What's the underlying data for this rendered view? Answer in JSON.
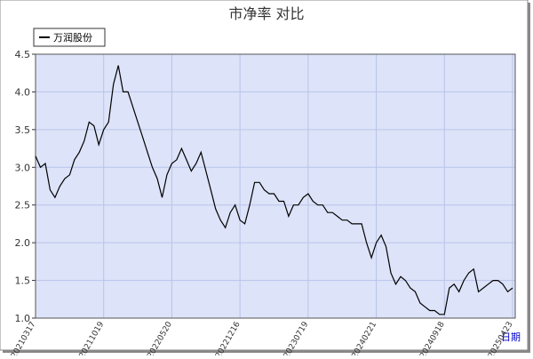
{
  "chart_data": {
    "type": "line",
    "title": "市净率 对比",
    "x_label": "日期",
    "categories": [
      "20210317",
      null,
      null,
      null,
      null,
      null,
      null,
      null,
      null,
      null,
      null,
      null,
      null,
      null,
      "20211019",
      null,
      null,
      null,
      null,
      null,
      null,
      null,
      null,
      null,
      null,
      null,
      null,
      null,
      "20220520",
      null,
      null,
      null,
      null,
      null,
      null,
      null,
      null,
      null,
      null,
      null,
      null,
      null,
      "20221216",
      null,
      null,
      null,
      null,
      null,
      null,
      null,
      null,
      null,
      null,
      null,
      null,
      null,
      "20230719",
      null,
      null,
      null,
      null,
      null,
      null,
      null,
      null,
      null,
      null,
      null,
      null,
      null,
      "20240221",
      null,
      null,
      null,
      null,
      null,
      null,
      null,
      null,
      null,
      null,
      null,
      null,
      null,
      "20240918",
      null,
      null,
      null,
      null,
      null,
      null,
      null,
      null,
      null,
      null,
      null,
      null,
      null,
      "20250423"
    ],
    "series": [
      {
        "name": "万润股份",
        "color": "#000000",
        "values": [
          3.15,
          3.0,
          3.05,
          2.7,
          2.6,
          2.75,
          2.85,
          2.9,
          3.1,
          3.2,
          3.35,
          3.6,
          3.55,
          3.3,
          3.5,
          3.6,
          4.1,
          4.35,
          4.0,
          4.0,
          3.8,
          3.6,
          3.4,
          3.2,
          3.0,
          2.85,
          2.6,
          2.9,
          3.05,
          3.1,
          3.25,
          3.1,
          2.95,
          3.05,
          3.2,
          2.95,
          2.7,
          2.45,
          2.3,
          2.2,
          2.4,
          2.5,
          2.3,
          2.25,
          2.5,
          2.8,
          2.8,
          2.7,
          2.65,
          2.65,
          2.55,
          2.55,
          2.35,
          2.5,
          2.5,
          2.6,
          2.65,
          2.55,
          2.5,
          2.5,
          2.4,
          2.4,
          2.35,
          2.3,
          2.3,
          2.25,
          2.25,
          2.25,
          2.0,
          1.8,
          2.0,
          2.1,
          1.95,
          1.6,
          1.45,
          1.55,
          1.5,
          1.4,
          1.35,
          1.2,
          1.15,
          1.1,
          1.1,
          1.05,
          1.05,
          1.4,
          1.45,
          1.35,
          1.5,
          1.6,
          1.65,
          1.35,
          1.4,
          1.45,
          1.5,
          1.5,
          1.45,
          1.35,
          1.4
        ]
      }
    ],
    "ylim": [
      1,
      4.5
    ],
    "yticks": [
      {
        "value": 1,
        "label": "1.0"
      },
      {
        "value": 1.5,
        "label": "1.5"
      },
      {
        "value": 2,
        "label": "2.0"
      },
      {
        "value": 2.5,
        "label": "2.5"
      },
      {
        "value": 3,
        "label": "3.0"
      },
      {
        "value": 3.5,
        "label": "3.5"
      },
      {
        "value": 4,
        "label": "4.0"
      },
      {
        "value": 4.5,
        "label": "4.5"
      }
    ],
    "grid": true
  }
}
